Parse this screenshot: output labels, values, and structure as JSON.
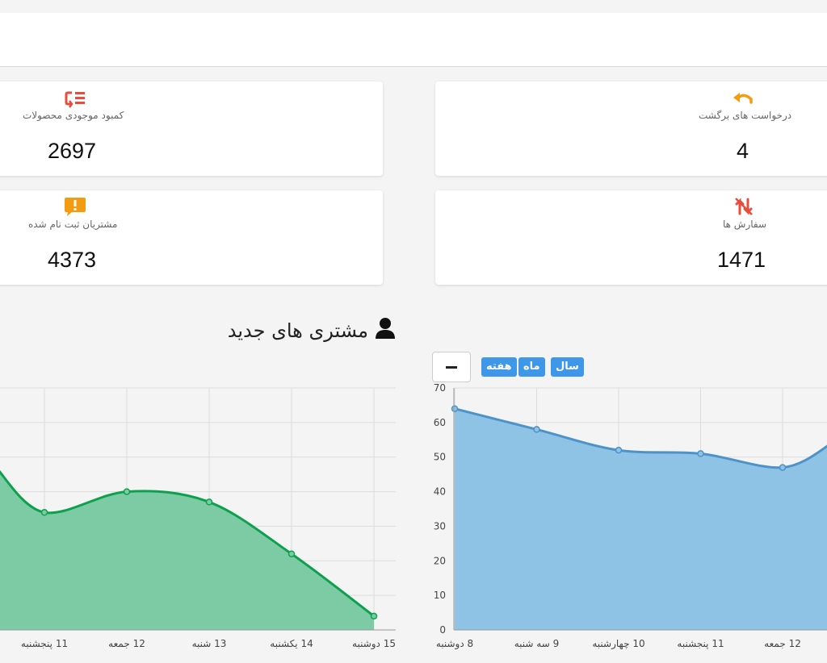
{
  "stats": {
    "shortage": {
      "label": "کمبود موجودی محصولات",
      "value": "2697",
      "icon": "list-shortage-icon",
      "color": "#e74c3c"
    },
    "returns": {
      "label": "درخواست های برگشت",
      "value": "4",
      "icon": "undo-arrow-icon",
      "color": "#f39c12"
    },
    "customers": {
      "label": "مشتریان ثبت نام شده",
      "value": "4373",
      "icon": "alert-message-icon",
      "color": "#f39c12"
    },
    "orders": {
      "label": "سفارش ها",
      "value": "1471",
      "icon": "sort-exchange-icon",
      "color": "#e74c3c"
    }
  },
  "section": {
    "title": "مشتری های جدید",
    "icon": "user-icon"
  },
  "controls": {
    "year": "سال",
    "month": "ماه",
    "week": "هفته"
  },
  "chart_data": [
    {
      "type": "area",
      "name": "new-customers-chart",
      "color": "#0ea14d",
      "fill": "#7dcba5",
      "x": [
        "11 پنجشنبه",
        "12 جمعه",
        "13 شنبه",
        "14 یکشنبه",
        "15 دوشنبه"
      ],
      "values": [
        34,
        40,
        37,
        22,
        4
      ],
      "ylim": [
        0,
        70
      ],
      "grid": true
    },
    {
      "type": "area",
      "name": "orders-chart",
      "color": "#4d92c8",
      "fill": "#8ec3e5",
      "x": [
        "8 دوشنبه",
        "9 سه شنبه",
        "10 چهارشنبه",
        "11 پنجشنبه",
        "12 جمعه"
      ],
      "values": [
        64,
        58,
        52,
        51,
        47
      ],
      "y_ticks": [
        0,
        10,
        20,
        30,
        40,
        50,
        60,
        70
      ],
      "ylim": [
        0,
        70
      ],
      "grid": true
    }
  ]
}
